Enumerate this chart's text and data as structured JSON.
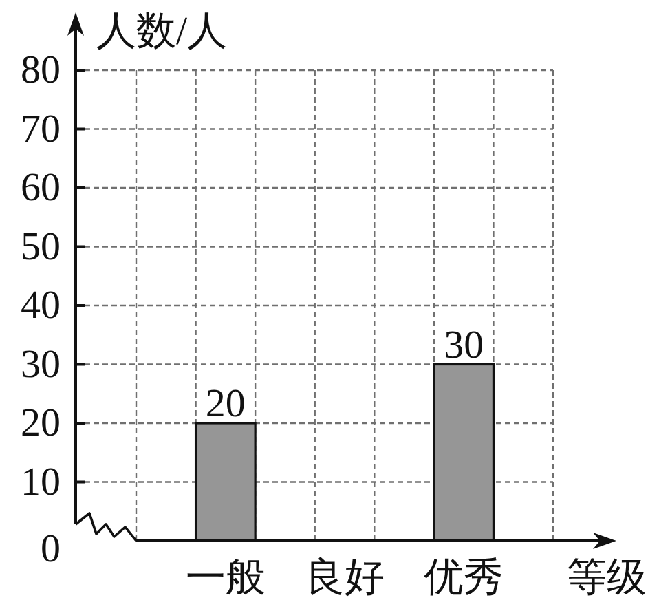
{
  "chart_data": {
    "type": "bar",
    "ylabel": "人数/人",
    "xlabel": "等级",
    "categories": [
      "一般",
      "良好",
      "优秀"
    ],
    "values": [
      20,
      null,
      30
    ],
    "color": "#969696",
    "ylim": [
      0,
      80
    ],
    "yticks": [
      0,
      10,
      20,
      30,
      40,
      50,
      60,
      70,
      80
    ],
    "grid": true,
    "data_labels": true
  }
}
